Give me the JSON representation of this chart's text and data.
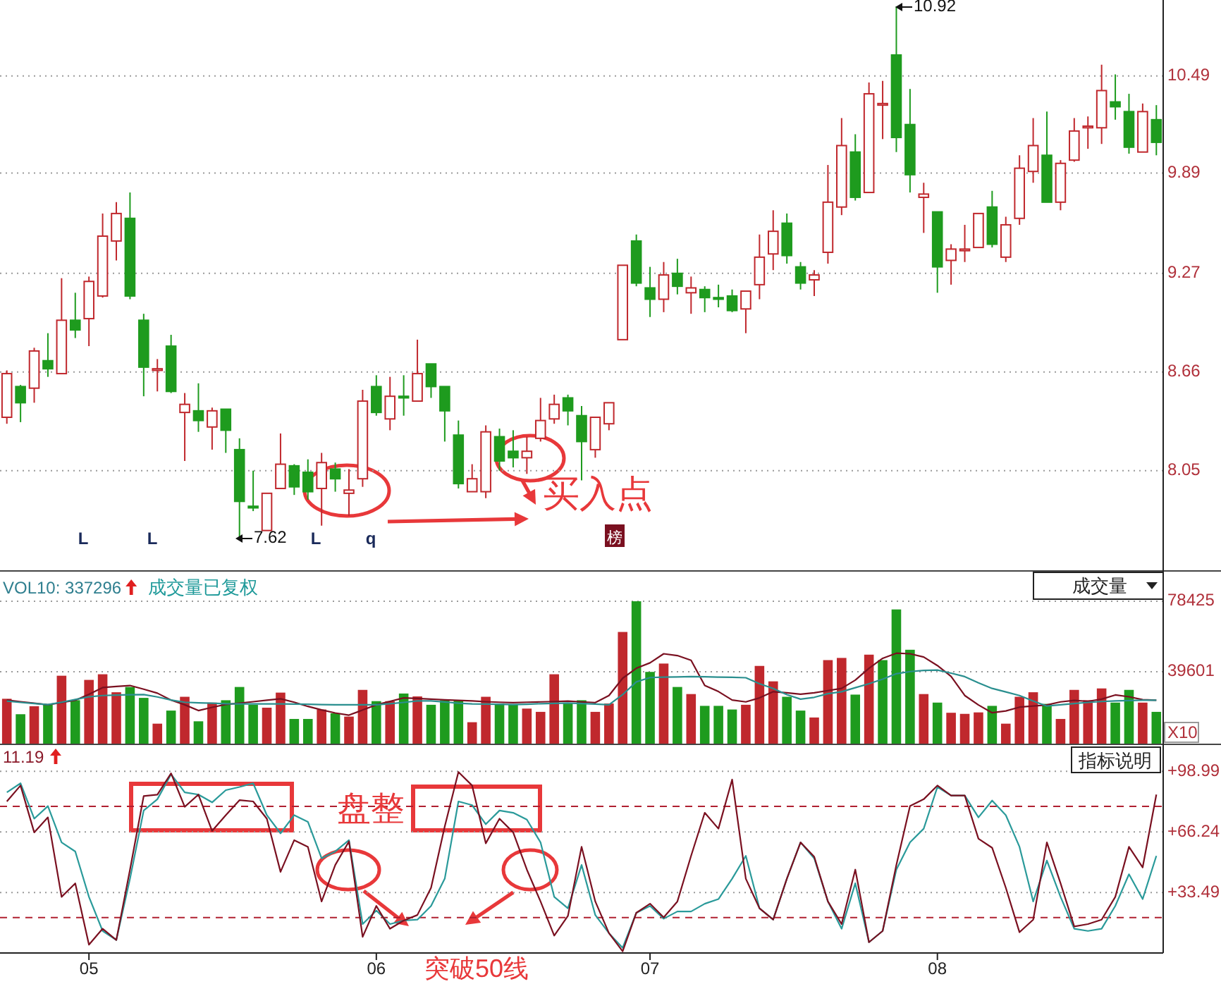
{
  "chart_data": [
    {
      "type": "candlestick",
      "ylim": [
        7.43,
        10.96
      ],
      "yticks": [
        8.05,
        8.66,
        9.27,
        9.89,
        10.49
      ],
      "grid": "y",
      "tick_labels": "y",
      "categories": [
        null,
        null,
        null,
        null,
        null,
        null,
        null,
        null,
        null,
        null,
        null,
        null,
        null,
        null,
        null,
        null,
        null,
        null,
        null,
        null,
        null,
        null,
        null,
        null,
        null,
        null,
        null,
        null,
        null,
        null,
        null,
        null,
        null,
        null,
        null,
        null,
        null,
        null,
        null,
        null,
        null,
        null,
        null,
        null,
        null,
        null,
        null,
        null,
        null,
        null,
        null,
        null,
        null,
        null,
        null,
        null,
        null,
        null,
        null,
        null,
        null,
        null,
        null,
        null,
        null,
        null,
        null,
        null,
        null,
        null,
        null,
        null,
        null,
        null,
        null,
        null,
        null,
        null,
        null,
        null,
        null,
        null,
        null,
        null,
        null
      ],
      "ohlc": [
        [
          8.38,
          8.67,
          8.34,
          8.65
        ],
        [
          8.57,
          8.58,
          8.35,
          8.47
        ],
        [
          8.56,
          8.81,
          8.47,
          8.79
        ],
        [
          8.73,
          8.9,
          8.63,
          8.68
        ],
        [
          8.65,
          9.24,
          8.65,
          8.98
        ],
        [
          8.98,
          9.15,
          8.87,
          8.92
        ],
        [
          8.99,
          9.25,
          8.82,
          9.22
        ],
        [
          9.13,
          9.64,
          9.12,
          9.5
        ],
        [
          9.47,
          9.71,
          9.35,
          9.64
        ],
        [
          9.61,
          9.77,
          9.11,
          9.13
        ],
        [
          8.98,
          9.02,
          8.51,
          8.69
        ],
        [
          8.67,
          8.74,
          8.54,
          8.68
        ],
        [
          8.82,
          8.89,
          8.53,
          8.54
        ],
        [
          8.41,
          8.53,
          8.11,
          8.46
        ],
        [
          8.42,
          8.59,
          8.29,
          8.36
        ],
        [
          8.32,
          8.44,
          8.18,
          8.42
        ],
        [
          8.43,
          8.43,
          8.16,
          8.3
        ],
        [
          8.18,
          8.25,
          7.62,
          7.86
        ],
        [
          7.83,
          8.05,
          7.8,
          7.82
        ],
        [
          7.68,
          7.91,
          7.68,
          7.91
        ],
        [
          7.94,
          8.28,
          7.94,
          8.09
        ],
        [
          8.08,
          8.09,
          7.9,
          7.95
        ],
        [
          8.04,
          8.12,
          7.87,
          7.92
        ],
        [
          7.94,
          8.16,
          7.71,
          8.1
        ],
        [
          8.06,
          8.1,
          7.92,
          8.0
        ],
        [
          7.91,
          8.06,
          7.77,
          7.93
        ],
        [
          8.0,
          8.55,
          7.95,
          8.48
        ],
        [
          8.57,
          8.64,
          8.39,
          8.41
        ],
        [
          8.37,
          8.63,
          8.3,
          8.51
        ],
        [
          8.51,
          8.64,
          8.39,
          8.5
        ],
        [
          8.48,
          8.86,
          8.48,
          8.65
        ],
        [
          8.71,
          8.71,
          8.5,
          8.57
        ],
        [
          8.57,
          8.57,
          8.23,
          8.42
        ],
        [
          8.27,
          8.36,
          7.94,
          7.97
        ],
        [
          7.92,
          8.09,
          7.92,
          8.0
        ],
        [
          7.92,
          8.33,
          7.88,
          8.29
        ],
        [
          8.26,
          8.31,
          8.05,
          8.11
        ],
        [
          8.17,
          8.3,
          8.07,
          8.13
        ],
        [
          8.13,
          8.26,
          8.03,
          8.17
        ],
        [
          8.25,
          8.5,
          8.23,
          8.36
        ],
        [
          8.37,
          8.52,
          8.34,
          8.46
        ],
        [
          8.5,
          8.52,
          8.33,
          8.42
        ],
        [
          8.39,
          8.45,
          7.99,
          8.23
        ],
        [
          8.18,
          8.38,
          8.13,
          8.38
        ],
        [
          8.34,
          8.47,
          8.3,
          8.47
        ],
        [
          8.86,
          9.32,
          8.86,
          9.32
        ],
        [
          9.47,
          9.51,
          9.19,
          9.21
        ],
        [
          9.18,
          9.31,
          9.0,
          9.11
        ],
        [
          9.11,
          9.34,
          9.03,
          9.26
        ],
        [
          9.27,
          9.36,
          9.14,
          9.19
        ],
        [
          9.15,
          9.25,
          9.02,
          9.18
        ],
        [
          9.17,
          9.19,
          9.03,
          9.12
        ],
        [
          9.12,
          9.2,
          9.06,
          9.11
        ],
        [
          9.13,
          9.17,
          9.03,
          9.04
        ],
        [
          9.05,
          9.16,
          8.9,
          9.16
        ],
        [
          9.2,
          9.51,
          9.11,
          9.37
        ],
        [
          9.39,
          9.66,
          9.29,
          9.53
        ],
        [
          9.58,
          9.64,
          9.33,
          9.38
        ],
        [
          9.31,
          9.34,
          9.17,
          9.21
        ],
        [
          9.23,
          9.29,
          9.13,
          9.26
        ],
        [
          9.4,
          9.94,
          9.33,
          9.71
        ],
        [
          9.68,
          10.23,
          9.63,
          10.06
        ],
        [
          10.02,
          10.13,
          9.72,
          9.74
        ],
        [
          9.77,
          10.45,
          9.77,
          10.38
        ],
        [
          10.31,
          10.46,
          10.1,
          10.32
        ],
        [
          10.62,
          10.92,
          10.02,
          10.11
        ],
        [
          10.19,
          10.41,
          9.77,
          9.88
        ],
        [
          9.74,
          9.83,
          9.52,
          9.76
        ],
        [
          9.65,
          9.65,
          9.15,
          9.31
        ],
        [
          9.35,
          9.45,
          9.2,
          9.42
        ],
        [
          9.41,
          9.57,
          9.34,
          9.42
        ],
        [
          9.43,
          9.64,
          9.43,
          9.64
        ],
        [
          9.68,
          9.78,
          9.43,
          9.45
        ],
        [
          9.37,
          9.62,
          9.34,
          9.57
        ],
        [
          9.61,
          10.0,
          9.57,
          9.92
        ],
        [
          9.9,
          10.23,
          9.83,
          10.06
        ],
        [
          10.0,
          10.27,
          9.71,
          9.71
        ],
        [
          9.71,
          9.97,
          9.66,
          9.95
        ],
        [
          9.97,
          10.23,
          9.96,
          10.15
        ],
        [
          10.17,
          10.24,
          10.04,
          10.18
        ],
        [
          10.17,
          10.56,
          10.07,
          10.4
        ],
        [
          10.33,
          10.5,
          10.22,
          10.3
        ],
        [
          10.27,
          10.38,
          10.01,
          10.05
        ],
        [
          10.02,
          10.32,
          10.02,
          10.27
        ],
        [
          10.22,
          10.31,
          10.0,
          10.08
        ]
      ],
      "colors": [
        "#c0282d",
        "#1e9b1e",
        "#c0282d",
        "#1e9b1e",
        "#c0282d",
        "#1e9b1e",
        "#c0282d",
        "#c0282d",
        "#c0282d",
        "#1e9b1e",
        "#1e9b1e",
        "#c0282d",
        "#1e9b1e",
        "#c0282d",
        "#1e9b1e",
        "#c0282d",
        "#1e9b1e",
        "#1e9b1e",
        "#1e9b1e",
        "#c0282d",
        "#c0282d",
        "#1e9b1e",
        "#1e9b1e",
        "#c0282d",
        "#1e9b1e",
        "#c0282d",
        "#c0282d",
        "#1e9b1e",
        "#c0282d",
        "#1e9b1e",
        "#c0282d",
        "#1e9b1e",
        "#1e9b1e",
        "#1e9b1e",
        "#c0282d",
        "#c0282d",
        "#1e9b1e",
        "#1e9b1e",
        "#c0282d",
        "#c0282d",
        "#c0282d",
        "#1e9b1e",
        "#1e9b1e",
        "#c0282d",
        "#c0282d",
        "#c0282d",
        "#1e9b1e",
        "#1e9b1e",
        "#c0282d",
        "#1e9b1e",
        "#c0282d",
        "#1e9b1e",
        "#1e9b1e",
        "#1e9b1e",
        "#c0282d",
        "#c0282d",
        "#c0282d",
        "#1e9b1e",
        "#1e9b1e",
        "#c0282d",
        "#c0282d",
        "#c0282d",
        "#1e9b1e",
        "#c0282d",
        "#c0282d",
        "#1e9b1e",
        "#1e9b1e",
        "#c0282d",
        "#1e9b1e",
        "#c0282d",
        "#c0282d",
        "#c0282d",
        "#1e9b1e",
        "#c0282d",
        "#c0282d",
        "#c0282d",
        "#1e9b1e",
        "#c0282d",
        "#c0282d",
        "#c0282d",
        "#c0282d",
        "#1e9b1e",
        "#1e9b1e",
        "#c0282d",
        "#1e9b1e"
      ],
      "annotations": [
        "7.62",
        "10.92",
        "买入点",
        "L",
        "L",
        "L",
        "q",
        "榜"
      ]
    },
    {
      "type": "bar",
      "title": "VOL10: 337296",
      "subtitle": "成交量已复权",
      "ylim": [
        0,
        95100
      ],
      "yticks": [
        39601,
        78425
      ],
      "grid": "y",
      "tick_labels": "y",
      "categories": [
        null,
        null,
        null,
        null,
        null,
        null,
        null,
        null,
        null,
        null,
        null,
        null,
        null,
        null,
        null,
        null,
        null,
        null,
        null,
        null,
        null,
        null,
        null,
        null,
        null,
        null,
        null,
        null,
        null,
        null,
        null,
        null,
        null,
        null,
        null,
        null,
        null,
        null,
        null,
        null,
        null,
        null,
        null,
        null,
        null,
        null,
        null,
        null,
        null,
        null,
        null,
        null,
        null,
        null,
        null,
        null,
        null,
        null,
        null,
        null,
        null,
        null,
        null,
        null,
        null,
        null,
        null,
        null,
        null,
        null,
        null,
        null,
        null,
        null,
        null,
        null,
        null,
        null,
        null,
        null,
        null,
        null,
        null,
        null,
        null
      ],
      "series": [
        {
          "type": "bar",
          "values": [
            24700,
            16200,
            20600,
            21400,
            37400,
            23900,
            35100,
            38200,
            28300,
            31200,
            25200,
            11000,
            18200,
            25800,
            12300,
            22600,
            23900,
            31200,
            21400,
            19800,
            28100,
            13600,
            13600,
            18800,
            16700,
            14900,
            29600,
            23400,
            23400,
            27600,
            26000,
            21400,
            23900,
            23900,
            11800,
            25800,
            22100,
            21400,
            19300,
            17500,
            38200,
            22100,
            23900,
            17500,
            22100,
            61500,
            78400,
            39500,
            44100,
            31200,
            27300,
            20800,
            20800,
            18800,
            21400,
            42800,
            34300,
            25800,
            18200,
            14400,
            46000,
            47200,
            27000,
            49000,
            46000,
            73900,
            51700,
            27300,
            22600,
            17000,
            16400,
            17200,
            20800,
            11000,
            25800,
            28300,
            21900,
            13600,
            29600,
            23900,
            30400,
            22600,
            29600,
            22600,
            17500
          ],
          "colors": [
            "#c0282d",
            "#1e9b1e",
            "#c0282d",
            "#1e9b1e",
            "#c0282d",
            "#1e9b1e",
            "#c0282d",
            "#c0282d",
            "#c0282d",
            "#1e9b1e",
            "#1e9b1e",
            "#c0282d",
            "#1e9b1e",
            "#c0282d",
            "#1e9b1e",
            "#c0282d",
            "#1e9b1e",
            "#1e9b1e",
            "#1e9b1e",
            "#c0282d",
            "#c0282d",
            "#1e9b1e",
            "#1e9b1e",
            "#c0282d",
            "#1e9b1e",
            "#c0282d",
            "#c0282d",
            "#1e9b1e",
            "#c0282d",
            "#1e9b1e",
            "#c0282d",
            "#1e9b1e",
            "#1e9b1e",
            "#1e9b1e",
            "#c0282d",
            "#c0282d",
            "#1e9b1e",
            "#1e9b1e",
            "#c0282d",
            "#c0282d",
            "#c0282d",
            "#1e9b1e",
            "#1e9b1e",
            "#c0282d",
            "#c0282d",
            "#c0282d",
            "#1e9b1e",
            "#1e9b1e",
            "#c0282d",
            "#1e9b1e",
            "#c0282d",
            "#1e9b1e",
            "#1e9b1e",
            "#1e9b1e",
            "#c0282d",
            "#c0282d",
            "#c0282d",
            "#1e9b1e",
            "#1e9b1e",
            "#c0282d",
            "#c0282d",
            "#c0282d",
            "#1e9b1e",
            "#c0282d",
            "#1e9b1e",
            "#1e9b1e",
            "#1e9b1e",
            "#c0282d",
            "#1e9b1e",
            "#c0282d",
            "#c0282d",
            "#c0282d",
            "#1e9b1e",
            "#c0282d",
            "#c0282d",
            "#c0282d",
            "#1e9b1e",
            "#c0282d",
            "#c0282d",
            "#c0282d",
            "#c0282d",
            "#1e9b1e",
            "#1e9b1e",
            "#c0282d",
            "#1e9b1e"
          ]
        },
        {
          "type": "line",
          "color": "#7a1020",
          "values": [
            24000,
            23100,
            22300,
            21400,
            22600,
            23900,
            27200,
            30900,
            31500,
            32000,
            30000,
            27800,
            24000,
            21400,
            18200,
            20000,
            21600,
            22300,
            23100,
            23900,
            24700,
            22800,
            20500,
            18600,
            16900,
            15700,
            18500,
            21400,
            23300,
            25200,
            24900,
            24500,
            24100,
            23800,
            23500,
            23100,
            22800,
            22600,
            22800,
            23000,
            23200,
            23400,
            23000,
            22600,
            26500,
            36000,
            41500,
            44500,
            49500,
            48500,
            45900,
            32000,
            28700,
            24000,
            23000,
            25200,
            28600,
            28000,
            27200,
            28000,
            29200,
            30400,
            35000,
            41500,
            47000,
            49800,
            49500,
            47700,
            43000,
            37000,
            26500,
            21300,
            17000,
            18000,
            20100,
            20700,
            21300,
            23000,
            23800,
            23300,
            24500,
            26800,
            25800,
            24200,
            23900
          ]
        },
        {
          "type": "line",
          "color": "#2a8f8f",
          "values": [
            23400,
            22700,
            22100,
            21500,
            22800,
            24300,
            25800,
            26500,
            26700,
            26900,
            27000,
            25700,
            24000,
            22800,
            22500,
            22300,
            22000,
            21900,
            21900,
            21900,
            21900,
            21800,
            21700,
            21500,
            21400,
            21400,
            21400,
            21400,
            22000,
            22700,
            23500,
            23500,
            22900,
            22300,
            21900,
            21800,
            21700,
            21500,
            21700,
            22000,
            22200,
            22400,
            22100,
            21800,
            21400,
            27000,
            34000,
            36400,
            36600,
            36700,
            36900,
            36800,
            36600,
            36500,
            36300,
            33000,
            30400,
            27000,
            24500,
            25500,
            27500,
            28600,
            30800,
            33000,
            35500,
            38500,
            39700,
            40300,
            40500,
            38800,
            36900,
            33500,
            30400,
            28500,
            26500,
            23500,
            20700,
            21400,
            22100,
            22700,
            23200,
            23500,
            23700,
            23900,
            23900
          ]
        }
      ],
      "annotations": [
        "成交量",
        "X10"
      ]
    },
    {
      "type": "line",
      "title": "11.19",
      "ylim": [
        0.9,
        112
      ],
      "grid": "y",
      "yticks": [
        {
          "value": 33.49,
          "label": "+33.49"
        },
        {
          "value": 66.24,
          "label": "+66.24"
        },
        {
          "value": 98.99,
          "label": "+98.99"
        }
      ],
      "categories": [
        null,
        null,
        null,
        null,
        null,
        null,
        "05",
        null,
        null,
        null,
        null,
        null,
        null,
        null,
        null,
        null,
        null,
        null,
        null,
        null,
        null,
        null,
        null,
        null,
        null,
        null,
        null,
        "06",
        null,
        null,
        null,
        null,
        null,
        null,
        null,
        null,
        null,
        null,
        null,
        null,
        null,
        null,
        null,
        null,
        null,
        null,
        null,
        "07",
        null,
        null,
        null,
        null,
        null,
        null,
        null,
        null,
        null,
        null,
        null,
        null,
        null,
        null,
        null,
        null,
        null,
        null,
        null,
        null,
        "08",
        null,
        null,
        null,
        null,
        null,
        null,
        null,
        null,
        null,
        null,
        null,
        null,
        null,
        null,
        null,
        null
      ],
      "series": [
        {
          "color": "#2a9a9a",
          "values": [
            87.6,
            92.5,
            73.4,
            80.2,
            60.6,
            55.7,
            31.2,
            12.8,
            7.9,
            41.0,
            77.8,
            83.9,
            97.4,
            87.6,
            86.4,
            82.2,
            88.8,
            90.5,
            92.5,
            75.3,
            65.5,
            75.3,
            71.7,
            52.0,
            55.7,
            61.8,
            16.5,
            23.8,
            16.5,
            18.4,
            18.9,
            26.3,
            41.0,
            82.7,
            80.7,
            70.4,
            77.8,
            76.6,
            72.9,
            60.6,
            31.2,
            25.0,
            48.4,
            21.4,
            11.6,
            3.7,
            22.6,
            26.3,
            19.4,
            23.3,
            23.3,
            27.5,
            30.0,
            41.0,
            53.3,
            25.0,
            18.9,
            41.0,
            60.6,
            52.0,
            28.7,
            14.0,
            38.5,
            6.7,
            12.8,
            45.9,
            60.6,
            68.0,
            90.5,
            85.9,
            85.9,
            74.1,
            83.2,
            75.3,
            58.2,
            28.7,
            50.8,
            31.2,
            14.0,
            12.8,
            14.0,
            26.3,
            43.4,
            30.0,
            53.3
          ]
        },
        {
          "color": "#7a1020",
          "values": [
            82.7,
            91.3,
            66.0,
            74.1,
            31.2,
            38.5,
            5.4,
            14.0,
            7.9,
            45.9,
            85.6,
            86.4,
            97.9,
            79.8,
            86.4,
            66.8,
            75.3,
            83.4,
            82.7,
            73.4,
            44.7,
            61.8,
            58.2,
            28.7,
            48.4,
            61.1,
            9.6,
            26.3,
            14.0,
            18.4,
            21.4,
            36.1,
            69.2,
            98.6,
            91.3,
            60.1,
            73.4,
            66.0,
            45.9,
            28.7,
            10.3,
            20.9,
            58.2,
            28.7,
            11.6,
            1.8,
            22.6,
            27.5,
            20.1,
            28.7,
            53.3,
            76.6,
            68.0,
            94.5,
            41.0,
            25.0,
            18.9,
            41.0,
            60.6,
            52.8,
            28.7,
            16.5,
            45.9,
            6.7,
            12.8,
            48.4,
            80.2,
            83.9,
            91.3,
            85.9,
            85.9,
            62.6,
            57.7,
            36.1,
            12.1,
            18.9,
            60.6,
            38.5,
            15.2,
            16.5,
            18.9,
            31.2,
            58.2,
            47.1,
            86.4
          ]
        }
      ],
      "ref_lines": [
        {
          "axis": "y",
          "value": 80,
          "color": "#b02030",
          "line_style": "dashed"
        },
        {
          "axis": "y",
          "value": 20,
          "color": "#b02030",
          "line_style": "dashed"
        }
      ],
      "annotations": [
        "指标说明",
        "盘整",
        "突破50线"
      ]
    }
  ]
}
